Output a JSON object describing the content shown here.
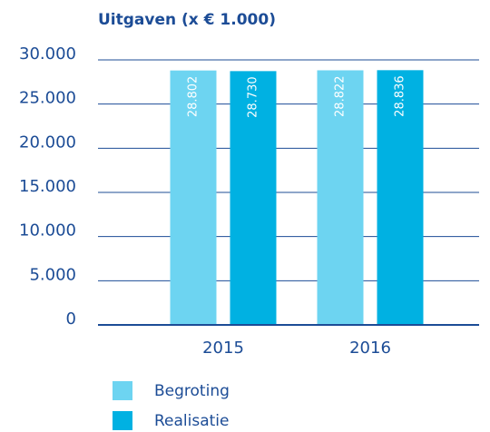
{
  "chart_data": {
    "type": "bar",
    "title": "Uitgaven (x € 1.000)",
    "categories": [
      "2015",
      "2016"
    ],
    "series": [
      {
        "name": "Begroting",
        "color": "#6dd4f1",
        "values": [
          28802,
          28822
        ],
        "value_labels": [
          "28.802",
          "28.822"
        ]
      },
      {
        "name": "Realisatie",
        "color": "#00b1e2",
        "values": [
          28730,
          28836
        ],
        "value_labels": [
          "28.730",
          "28.836"
        ]
      }
    ],
    "ylim": [
      0,
      30000
    ],
    "yticks": [
      0,
      {
        "value": 5000,
        "label": "5.000"
      },
      {
        "value": 10000,
        "label": "10.000"
      },
      {
        "value": 15000,
        "label": "15.000"
      },
      {
        "value": 20000,
        "label": "20.000"
      },
      {
        "value": 25000,
        "label": "25.000"
      },
      {
        "value": 30000,
        "label": "30.000"
      }
    ],
    "grid": true,
    "legend": "bottom"
  }
}
